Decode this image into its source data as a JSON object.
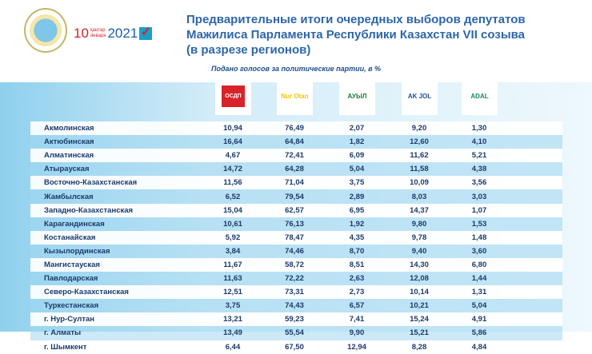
{
  "header": {
    "date_day": "10",
    "date_month_kz": "қаңтар",
    "date_month_ru": "января",
    "date_year": "2021",
    "title_lines": [
      "Предварительные итоги очередных выборов депутатов",
      "Мажилиса Парламента Республики Казахстан VII созыва",
      "(в разрезе регионов)"
    ]
  },
  "subtitle": "Подано голосов за политические партии, в %",
  "parties": [
    {
      "logo": "ОСДП",
      "color": "#d8232a"
    },
    {
      "logo": "Nur Otan",
      "color": "#f2c500"
    },
    {
      "logo": "АУЫЛ",
      "color": "#1b7a3a"
    },
    {
      "logo": "AK JOL",
      "color": "#1e4f9a"
    },
    {
      "logo": "ADAL",
      "color": "#1a8a6a"
    }
  ],
  "chart_data": {
    "type": "table",
    "title": "Подано голосов за политические партии, в %",
    "rows": [
      {
        "region": "Акмолинская",
        "values": [
          "10,94",
          "76,49",
          "2,07",
          "9,20",
          "1,30"
        ]
      },
      {
        "region": "Актюбинская",
        "values": [
          "16,64",
          "64,84",
          "1,82",
          "12,60",
          "4,10"
        ]
      },
      {
        "region": "Алматинская",
        "values": [
          "4,67",
          "72,41",
          "6,09",
          "11,62",
          "5,21"
        ]
      },
      {
        "region": "Атырауская",
        "values": [
          "14,72",
          "64,28",
          "5,04",
          "11,58",
          "4,38"
        ]
      },
      {
        "region": "Восточно-Казахстанская",
        "values": [
          "11,56",
          "71,04",
          "3,75",
          "10,09",
          "3,56"
        ]
      },
      {
        "region": "Жамбылская",
        "values": [
          "6,52",
          "79,54",
          "2,89",
          "8,03",
          "3,03"
        ]
      },
      {
        "region": "Западно-Казахстанская",
        "values": [
          "15,04",
          "62,57",
          "6,95",
          "14,37",
          "1,07"
        ]
      },
      {
        "region": "Карагандинская",
        "values": [
          "10,61",
          "76,13",
          "1,92",
          "9,80",
          "1,53"
        ]
      },
      {
        "region": "Костанайская",
        "values": [
          "5,92",
          "78,47",
          "4,35",
          "9,78",
          "1,48"
        ]
      },
      {
        "region": "Кызылординская",
        "values": [
          "3,84",
          "74,46",
          "8,70",
          "9,40",
          "3,60"
        ]
      },
      {
        "region": "Мангистауская",
        "values": [
          "11,67",
          "58,72",
          "8,51",
          "14,30",
          "6,80"
        ]
      },
      {
        "region": "Павлодарская",
        "values": [
          "11,63",
          "72,22",
          "2,63",
          "12,08",
          "1,44"
        ]
      },
      {
        "region": "Северо-Казахстанская",
        "values": [
          "12,51",
          "73,31",
          "2,73",
          "10,14",
          "1,31"
        ]
      },
      {
        "region": "Туркестанская",
        "values": [
          "3,75",
          "74,43",
          "6,57",
          "10,21",
          "5,04"
        ]
      },
      {
        "region": "г. Нур-Султан",
        "values": [
          "13,21",
          "59,23",
          "7,41",
          "15,24",
          "4,91"
        ]
      },
      {
        "region": "г. Алматы",
        "values": [
          "13,49",
          "55,54",
          "9,90",
          "15,21",
          "5,86"
        ]
      },
      {
        "region": "г. Шымкент",
        "values": [
          "6,44",
          "67,50",
          "12,94",
          "8,28",
          "4,84"
        ]
      }
    ]
  }
}
